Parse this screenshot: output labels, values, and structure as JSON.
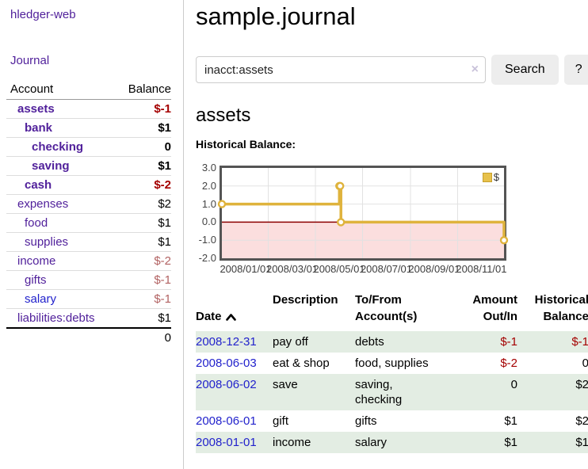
{
  "app": {
    "brand": "hledger-web"
  },
  "colors": {
    "link_purple": "#51219b",
    "link_blue": "#2222cc",
    "negative_strong": "#a40000",
    "negative_muted": "#b26262",
    "row_green": "#e3ede3",
    "chart_gold": "#dfb33c"
  },
  "icons": {
    "clear_search_glyph": "×",
    "sort_icon": "sort-ascending-icon"
  },
  "sidebar": {
    "journal_link": "Journal",
    "accounts_table": {
      "account_header": "Account",
      "balance_header": "Balance",
      "rows": [
        {
          "name": "assets",
          "balance": "$-1",
          "level": 1,
          "bold": true,
          "name_color": "purple",
          "balance_color": "red-strong"
        },
        {
          "name": "bank",
          "balance": "$1",
          "level": 2,
          "bold": true,
          "name_color": "purple",
          "balance_color": "black"
        },
        {
          "name": "checking",
          "balance": "0",
          "level": 3,
          "bold": true,
          "name_color": "purple",
          "balance_color": "black"
        },
        {
          "name": "saving",
          "balance": "$1",
          "level": 3,
          "bold": true,
          "name_color": "purple",
          "balance_color": "black"
        },
        {
          "name": "cash",
          "balance": "$-2",
          "level": 2,
          "bold": true,
          "name_color": "purple",
          "balance_color": "red-strong"
        },
        {
          "name": "expenses",
          "balance": "$2",
          "level": 1,
          "bold": false,
          "name_color": "purple",
          "balance_color": "black"
        },
        {
          "name": "food",
          "balance": "$1",
          "level": 2,
          "bold": false,
          "name_color": "purple",
          "balance_color": "black"
        },
        {
          "name": "supplies",
          "balance": "$1",
          "level": 2,
          "bold": false,
          "name_color": "purple",
          "balance_color": "black"
        },
        {
          "name": "income",
          "balance": "$-2",
          "level": 1,
          "bold": false,
          "name_color": "purple",
          "balance_color": "red-muted"
        },
        {
          "name": "gifts",
          "balance": "$-1",
          "level": 2,
          "bold": false,
          "name_color": "purple",
          "balance_color": "red-muted"
        },
        {
          "name": "salary",
          "balance": "$-1",
          "level": 2,
          "bold": false,
          "name_color": "blue",
          "balance_color": "red-muted"
        },
        {
          "name": "liabilities:debts",
          "balance": "$1",
          "level": 1,
          "bold": false,
          "name_color": "purple",
          "balance_color": "black"
        }
      ],
      "total": "0"
    }
  },
  "main": {
    "title": "sample.journal",
    "search": {
      "value": "inacct:assets",
      "button_label": "Search",
      "help_label": "?"
    },
    "account_heading": "assets",
    "register_table": {
      "headers": {
        "date": "Date",
        "description": "Description",
        "accounts": "To/From\nAccount(s)",
        "amount": "Amount\nOut/In",
        "balance": "Historical\nBalance"
      },
      "sort": {
        "column": "Date",
        "direction": "ascending"
      },
      "rows": [
        {
          "date": "2008-12-31",
          "description": "pay off",
          "accounts": "debts",
          "amount": "$-1",
          "amount_negative": true,
          "balance": "$-1",
          "balance_negative": true
        },
        {
          "date": "2008-06-03",
          "description": "eat & shop",
          "accounts": "food, supplies",
          "amount": "$-2",
          "amount_negative": true,
          "balance": "0",
          "balance_negative": false
        },
        {
          "date": "2008-06-02",
          "description": "save",
          "accounts": "saving,\nchecking",
          "amount": "0",
          "amount_negative": false,
          "balance": "$2",
          "balance_negative": false
        },
        {
          "date": "2008-06-01",
          "description": "gift",
          "accounts": "gifts",
          "amount": "$1",
          "amount_negative": false,
          "balance": "$2",
          "balance_negative": false
        },
        {
          "date": "2008-01-01",
          "description": "income",
          "accounts": "salary",
          "amount": "$1",
          "amount_negative": false,
          "balance": "$1",
          "balance_negative": false
        }
      ]
    }
  },
  "chart_data": {
    "type": "line",
    "step": true,
    "title": "Historical Balance:",
    "x_range": [
      "2008-01-01",
      "2008-12-31"
    ],
    "ylim": [
      -2,
      3
    ],
    "x_ticks": [
      {
        "date": "2008-01-01",
        "label": "2008/01/01"
      },
      {
        "date": "2008-03-01",
        "label": "2008/03/01"
      },
      {
        "date": "2008-05-01",
        "label": "2008/05/01"
      },
      {
        "date": "2008-07-01",
        "label": "2008/07/01"
      },
      {
        "date": "2008-09-01",
        "label": "2008/09/01"
      },
      {
        "date": "2008-11-01",
        "label": "2008/11/01"
      }
    ],
    "y_ticks": [
      {
        "value": 3,
        "label": "3.0"
      },
      {
        "value": 2,
        "label": "2.0"
      },
      {
        "value": 1,
        "label": "1.0"
      },
      {
        "value": 0,
        "label": "0.0"
      },
      {
        "value": -1,
        "label": "-1.0"
      },
      {
        "value": -2,
        "label": "-2.0"
      }
    ],
    "series": [
      {
        "name": "$",
        "color": "#dfb33c",
        "marker_fill": "#ffffff",
        "points": [
          {
            "date": "2008-01-01",
            "value": 1
          },
          {
            "date": "2008-06-01",
            "value": 2
          },
          {
            "date": "2008-06-02",
            "value": 2
          },
          {
            "date": "2008-06-03",
            "value": 0
          },
          {
            "date": "2008-12-31",
            "value": -1
          }
        ]
      }
    ],
    "legend": {
      "label": "$",
      "position": "top-right",
      "swatch_color": "#e7c14b"
    },
    "grid": {
      "on": true,
      "line_color": "#e2e2e2",
      "border_color": "#545454",
      "zero_line_color": "#8b0000",
      "negative_region_color": "#fbdede"
    }
  }
}
